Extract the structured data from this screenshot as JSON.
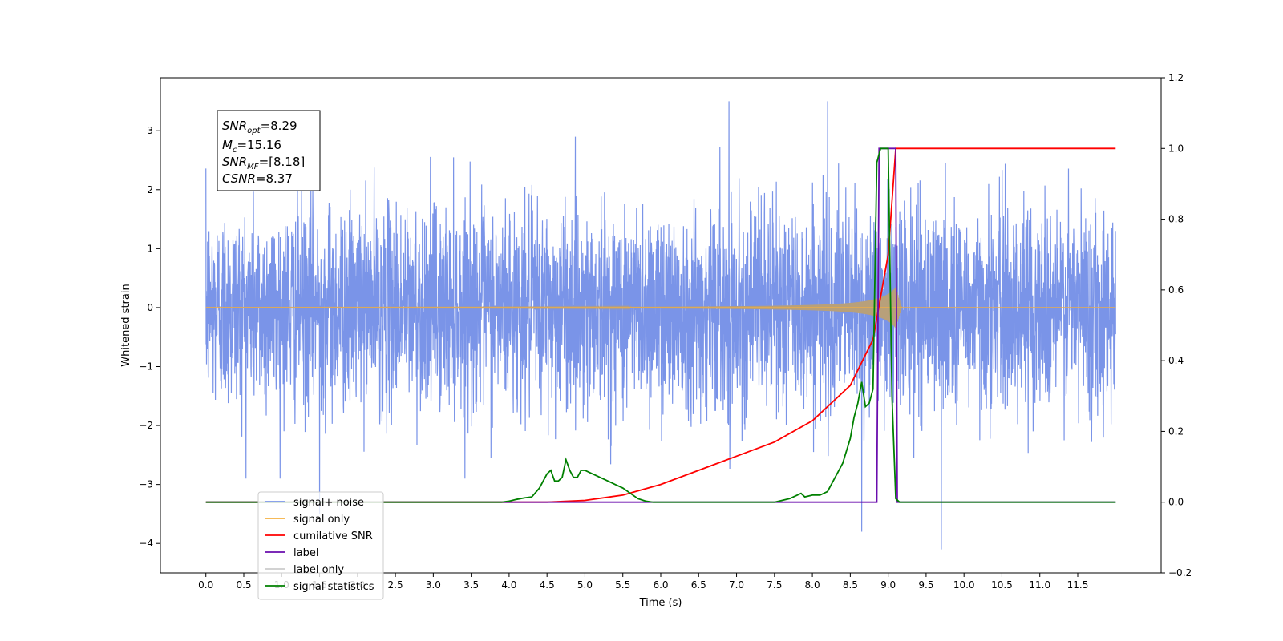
{
  "chart_data": {
    "type": "line",
    "xlabel": "Time (s)",
    "ylabel": "Whitened strain",
    "xlim": [
      -0.6,
      12.6
    ],
    "ylim": [
      -4.5,
      3.9
    ],
    "y2lim": [
      -0.2,
      1.2
    ],
    "x_ticks": [
      0.0,
      0.5,
      1.0,
      1.5,
      2.0,
      2.5,
      3.0,
      3.5,
      4.0,
      4.5,
      5.0,
      5.5,
      6.0,
      6.5,
      7.0,
      7.5,
      8.0,
      8.5,
      9.0,
      9.5,
      10.0,
      10.5,
      11.0,
      11.5
    ],
    "x_tick_labels": [
      "0.0",
      "0.5",
      "1.0",
      "1.5",
      "2.0",
      "2.5",
      "3.0",
      "3.5",
      "4.0",
      "4.5",
      "5.0",
      "5.5",
      "6.0",
      "6.5",
      "7.0",
      "7.5",
      "8.0",
      "8.5",
      "9.0",
      "9.5",
      "10.0",
      "10.5",
      "11.0",
      "11.5"
    ],
    "y_ticks": [
      -4,
      -3,
      -2,
      -1,
      0,
      1,
      2,
      3
    ],
    "y_tick_labels": [
      "−4",
      "−3",
      "−2",
      "−1",
      "0",
      "1",
      "2",
      "3"
    ],
    "y2_ticks": [
      -0.2,
      0.0,
      0.2,
      0.4,
      0.6,
      0.8,
      1.0,
      1.2
    ],
    "y2_tick_labels": [
      "−0.2",
      "0.0",
      "0.2",
      "0.4",
      "0.6",
      "0.8",
      "1.0",
      "1.2"
    ],
    "legend_position": "bottom-left",
    "legend_entries": [
      "signal+ noise",
      "signal only",
      "cumilative SNR",
      "label",
      "label only",
      "signal statistics"
    ],
    "info_box": {
      "snr_opt": "8.29",
      "m_c": "15.16",
      "snr_mf": "[8.18]",
      "csnr": "8.37"
    },
    "series": [
      {
        "name": "signal+ noise",
        "axis": "left",
        "color": "#7a94e8",
        "kind": "noise",
        "x_range": [
          0.0,
          12.0
        ],
        "typical_amplitude": [
          -1.5,
          1.5
        ],
        "peak_excursions": [
          [
            6.9,
            3.5
          ],
          [
            8.2,
            3.5
          ],
          [
            9.7,
            -4.1
          ],
          [
            8.65,
            -3.8
          ],
          [
            1.5,
            -3.5
          ]
        ]
      },
      {
        "name": "signal only",
        "axis": "left",
        "color": "#f5b041",
        "kind": "chirp",
        "x_range": [
          0.0,
          12.0
        ],
        "merger_time": 9.1,
        "peak_amplitude": 0.35,
        "band_color": "#b8a07a"
      },
      {
        "name": "cumilative SNR",
        "axis": "right",
        "color": "#ff0000",
        "x": [
          0.0,
          4.5,
          5.0,
          5.5,
          6.0,
          6.5,
          7.0,
          7.5,
          8.0,
          8.5,
          8.8,
          9.0,
          9.1,
          12.0
        ],
        "y": [
          0.0,
          0.0,
          0.005,
          0.02,
          0.05,
          0.09,
          0.13,
          0.17,
          0.23,
          0.33,
          0.46,
          0.7,
          1.0,
          1.0
        ]
      },
      {
        "name": "label",
        "axis": "right",
        "color": "#6a0dad",
        "x": [
          0.0,
          8.85,
          8.88,
          9.1,
          9.12,
          12.0
        ],
        "y": [
          0.0,
          0.0,
          1.0,
          1.0,
          0.0,
          0.0
        ]
      },
      {
        "name": "signal statistics",
        "axis": "right",
        "color": "#008000",
        "x": [
          0.0,
          3.9,
          4.0,
          4.1,
          4.2,
          4.3,
          4.4,
          4.5,
          4.55,
          4.6,
          4.65,
          4.7,
          4.75,
          4.8,
          4.85,
          4.9,
          4.95,
          5.0,
          5.05,
          5.1,
          5.15,
          5.2,
          5.3,
          5.4,
          5.5,
          5.6,
          5.7,
          5.8,
          5.9,
          7.5,
          7.6,
          7.7,
          7.8,
          7.85,
          7.9,
          8.0,
          8.1,
          8.2,
          8.3,
          8.4,
          8.5,
          8.55,
          8.6,
          8.65,
          8.7,
          8.75,
          8.8,
          8.85,
          8.9,
          9.0,
          9.05,
          9.1,
          9.15,
          12.0
        ],
        "y": [
          0.0,
          0.0,
          0.003,
          0.008,
          0.012,
          0.015,
          0.04,
          0.08,
          0.09,
          0.06,
          0.06,
          0.07,
          0.12,
          0.09,
          0.07,
          0.07,
          0.09,
          0.09,
          0.085,
          0.08,
          0.075,
          0.07,
          0.06,
          0.05,
          0.04,
          0.025,
          0.01,
          0.003,
          0.0,
          0.0,
          0.005,
          0.01,
          0.02,
          0.025,
          0.015,
          0.02,
          0.02,
          0.03,
          0.07,
          0.11,
          0.18,
          0.24,
          0.28,
          0.34,
          0.27,
          0.28,
          0.32,
          0.96,
          1.0,
          1.0,
          0.3,
          0.01,
          0.0,
          0.0
        ]
      }
    ]
  }
}
